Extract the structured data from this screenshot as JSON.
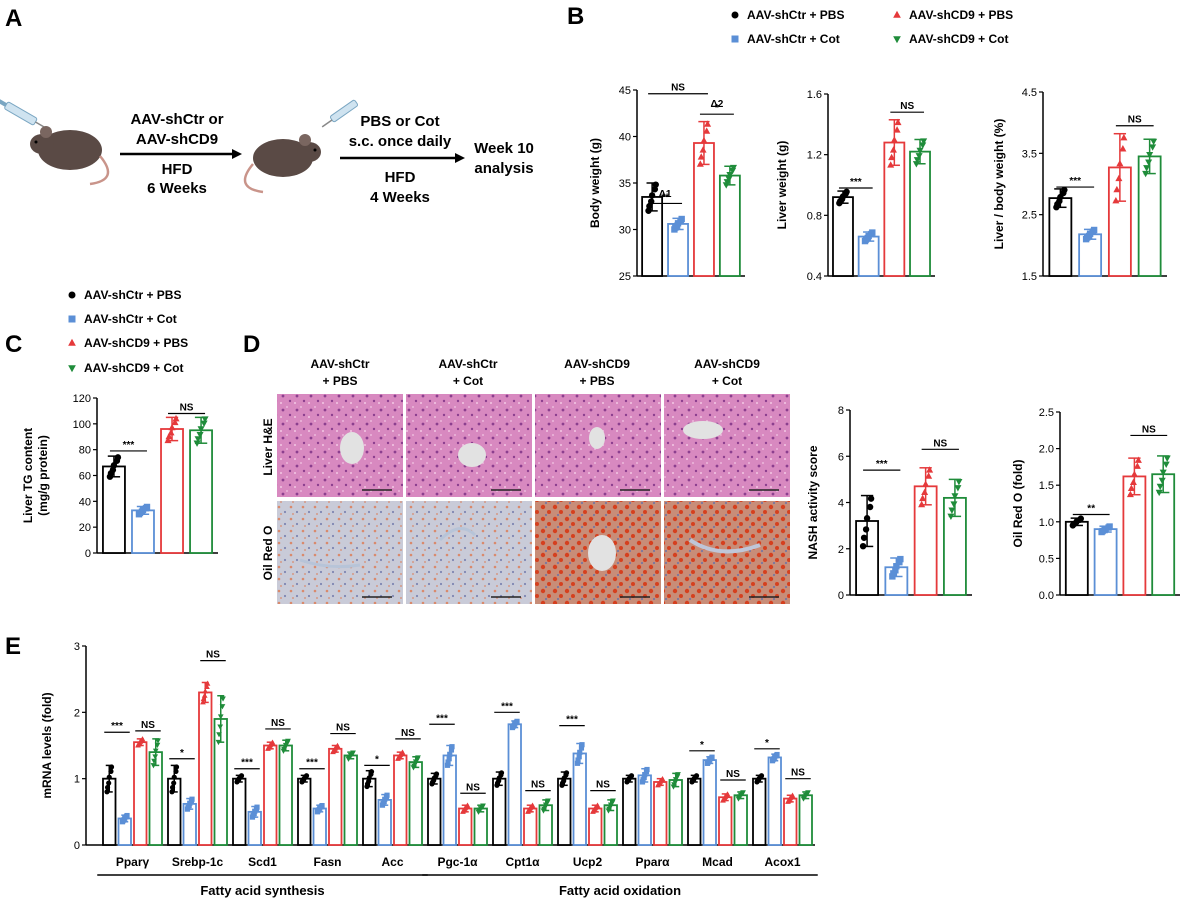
{
  "colors": {
    "AAV-shCtr + PBS": "#000000",
    "AAV-shCtr + Cot": "#5b8fd6",
    "AAV-shCD9 + PBS": "#e5393b",
    "AAV-shCD9 + Cot": "#1f8c3a"
  },
  "icons": [
    "syringe-icon",
    "mouse-icon",
    "arrow-right-icon"
  ],
  "panel_A": {
    "label": "A",
    "step1": [
      "AAV-shCtr or",
      "AAV-shCD9",
      "HFD",
      "6 Weeks"
    ],
    "step2": [
      "PBS or Cot",
      "s.c. once daily",
      "HFD",
      "4 Weeks"
    ],
    "result": [
      "Week 10",
      "analysis"
    ]
  },
  "panel_B_label": "B",
  "panel_C_label": "C",
  "panel_D": {
    "label": "D",
    "columns": [
      [
        "AAV-shCtr",
        "+ PBS"
      ],
      [
        "AAV-shCtr",
        "+ Cot"
      ],
      [
        "AAV-shCD9",
        "+ PBS"
      ],
      [
        "AAV-shCD9",
        "+ Cot"
      ]
    ],
    "rows": [
      "Liver H&E",
      "Oil Red O"
    ]
  },
  "panel_E_label": "E",
  "legend_B": [
    "AAV-shCtr + PBS",
    "AAV-shCtr + Cot",
    "AAV-shCD9 + PBS",
    "AAV-shCD9 + Cot"
  ],
  "legend_C": [
    "AAV-shCtr + PBS",
    "AAV-shCtr + Cot",
    "AAV-shCD9 + PBS",
    "AAV-shCD9 + Cot"
  ],
  "chart_data": [
    {
      "id": "B1",
      "type": "bar",
      "ylabel": "Body weight (g)",
      "ylim": [
        25,
        45
      ],
      "yticks": [
        25,
        30,
        35,
        40,
        45
      ],
      "groups": [
        "AAV-shCtr + PBS",
        "AAV-shCtr + Cot",
        "AAV-shCD9 + PBS",
        "AAV-shCD9 + Cot"
      ],
      "values": [
        33.5,
        30.6,
        39.3,
        35.8
      ],
      "errors": [
        1.5,
        0.6,
        2.3,
        1.0
      ],
      "annotations": [
        {
          "pair": [
            0,
            1
          ],
          "text": "**",
          "y": 32.8
        },
        {
          "pair": [
            0,
            1
          ],
          "text": "Δ1",
          "y": 33.7
        },
        {
          "pair": [
            2,
            3
          ],
          "text": "*",
          "y": 42.4
        },
        {
          "pair": [
            2,
            3
          ],
          "text": "Δ2",
          "y": 43.4
        },
        {
          "pair": [
            0,
            2
          ],
          "text": "NS",
          "y": 44.6
        }
      ]
    },
    {
      "id": "B2",
      "type": "bar",
      "ylabel": "Liver weight (g)",
      "ylim": [
        0.4,
        1.6
      ],
      "yticks": [
        0.4,
        0.8,
        1.2,
        1.6
      ],
      "groups": [
        "AAV-shCtr + PBS",
        "AAV-shCtr + Cot",
        "AAV-shCD9 + PBS",
        "AAV-shCD9 + Cot"
      ],
      "values": [
        0.92,
        0.66,
        1.28,
        1.22
      ],
      "errors": [
        0.04,
        0.03,
        0.15,
        0.08
      ],
      "annotations": [
        {
          "pair": [
            0,
            1
          ],
          "text": "***",
          "y": 0.98
        },
        {
          "pair": [
            2,
            3
          ],
          "text": "NS",
          "y": 1.48
        }
      ]
    },
    {
      "id": "B3",
      "type": "bar",
      "ylabel": "Liver / body weight (%)",
      "ylim": [
        1.5,
        4.5
      ],
      "yticks": [
        1.5,
        2.5,
        3.5,
        4.5
      ],
      "groups": [
        "AAV-shCtr + PBS",
        "AAV-shCtr + Cot",
        "AAV-shCD9 + PBS",
        "AAV-shCD9 + Cot"
      ],
      "values": [
        2.77,
        2.18,
        3.27,
        3.45
      ],
      "errors": [
        0.15,
        0.08,
        0.55,
        0.28
      ],
      "annotations": [
        {
          "pair": [
            0,
            1
          ],
          "text": "***",
          "y": 2.95
        },
        {
          "pair": [
            2,
            3
          ],
          "text": "NS",
          "y": 3.95
        }
      ]
    },
    {
      "id": "C",
      "type": "bar",
      "ylabel": [
        "Liver TG content",
        "(mg/g protein)"
      ],
      "ylim": [
        0,
        120
      ],
      "yticks": [
        0,
        20,
        40,
        60,
        80,
        100,
        120
      ],
      "groups": [
        "AAV-shCtr + PBS",
        "AAV-shCtr + Cot",
        "AAV-shCD9 + PBS",
        "AAV-shCD9 + Cot"
      ],
      "values": [
        67,
        33,
        96,
        95
      ],
      "errors": [
        8,
        3,
        9,
        10
      ],
      "annotations": [
        {
          "pair": [
            0,
            1
          ],
          "text": "***",
          "y": 79
        },
        {
          "pair": [
            2,
            3
          ],
          "text": "NS",
          "y": 108
        }
      ]
    },
    {
      "id": "D1",
      "type": "bar",
      "ylabel": "NASH activity score",
      "ylim": [
        0,
        8
      ],
      "yticks": [
        0,
        2,
        4,
        6,
        8
      ],
      "groups": [
        "AAV-shCtr + PBS",
        "AAV-shCtr + Cot",
        "AAV-shCD9 + PBS",
        "AAV-shCD9 + Cot"
      ],
      "values": [
        3.2,
        1.2,
        4.7,
        4.2
      ],
      "errors": [
        1.1,
        0.4,
        0.8,
        0.8
      ],
      "annotations": [
        {
          "pair": [
            0,
            1
          ],
          "text": "***",
          "y": 5.4
        },
        {
          "pair": [
            2,
            3
          ],
          "text": "NS",
          "y": 6.3
        }
      ]
    },
    {
      "id": "D2",
      "type": "bar",
      "ylabel": "Oil Red O (fold)",
      "ylim": [
        0,
        2.5
      ],
      "yticks": [
        0.0,
        0.5,
        1.0,
        1.5,
        2.0,
        2.5
      ],
      "groups": [
        "AAV-shCtr + PBS",
        "AAV-shCtr + Cot",
        "AAV-shCD9 + PBS",
        "AAV-shCD9 + Cot"
      ],
      "values": [
        1.0,
        0.9,
        1.62,
        1.65
      ],
      "errors": [
        0.05,
        0.04,
        0.25,
        0.25
      ],
      "annotations": [
        {
          "pair": [
            0,
            1
          ],
          "text": "**",
          "y": 1.1
        },
        {
          "pair": [
            2,
            3
          ],
          "text": "NS",
          "y": 2.18
        }
      ]
    },
    {
      "id": "E",
      "type": "bar",
      "ylabel": "mRNA levels (fold)",
      "ylim": [
        0,
        3
      ],
      "yticks": [
        0,
        1,
        2,
        3
      ],
      "categories": [
        "Pparγ",
        "Srebp-1c",
        "Scd1",
        "Fasn",
        "Acc",
        "Pgc-1α",
        "Cpt1α",
        "Ucp2",
        "Pparα",
        "Mcad",
        "Acox1"
      ],
      "groups_labels": [
        {
          "text": "Fatty acid synthesis",
          "from": 0,
          "to": 4
        },
        {
          "text": "Fatty acid oxidation",
          "from": 5,
          "to": 10
        }
      ],
      "series": [
        {
          "name": "AAV-shCtr + PBS",
          "values": [
            1.0,
            1.0,
            1.0,
            1.0,
            1.0,
            1.0,
            1.0,
            1.0,
            1.0,
            1.0,
            1.0
          ],
          "errors": [
            0.2,
            0.2,
            0.05,
            0.05,
            0.12,
            0.08,
            0.1,
            0.1,
            0.05,
            0.05,
            0.05
          ]
        },
        {
          "name": "AAV-shCtr + Cot",
          "values": [
            0.4,
            0.62,
            0.5,
            0.55,
            0.68,
            1.35,
            1.82,
            1.38,
            1.05,
            1.28,
            1.32
          ],
          "errors": [
            0.05,
            0.08,
            0.08,
            0.05,
            0.08,
            0.15,
            0.05,
            0.15,
            0.1,
            0.05,
            0.05
          ]
        },
        {
          "name": "AAV-shCD9 + PBS",
          "values": [
            1.55,
            2.3,
            1.5,
            1.45,
            1.35,
            0.55,
            0.55,
            0.55,
            0.95,
            0.72,
            0.7
          ],
          "errors": [
            0.05,
            0.15,
            0.05,
            0.05,
            0.05,
            0.05,
            0.05,
            0.05,
            0.05,
            0.05,
            0.05
          ]
        },
        {
          "name": "AAV-shCD9 + Cot",
          "values": [
            1.4,
            1.9,
            1.5,
            1.35,
            1.25,
            0.55,
            0.6,
            0.6,
            0.98,
            0.75,
            0.75
          ],
          "errors": [
            0.2,
            0.35,
            0.08,
            0.05,
            0.08,
            0.05,
            0.08,
            0.08,
            0.1,
            0.05,
            0.05
          ]
        }
      ],
      "annotations": [
        {
          "cat": 0,
          "pair": [
            0,
            1
          ],
          "text": "***",
          "y": 1.7
        },
        {
          "cat": 0,
          "pair": [
            2,
            3
          ],
          "text": "NS",
          "y": 1.72
        },
        {
          "cat": 1,
          "pair": [
            0,
            1
          ],
          "text": "*",
          "y": 1.3
        },
        {
          "cat": 1,
          "pair": [
            2,
            3
          ],
          "text": "NS",
          "y": 2.78
        },
        {
          "cat": 2,
          "pair": [
            0,
            1
          ],
          "text": "***",
          "y": 1.15
        },
        {
          "cat": 2,
          "pair": [
            2,
            3
          ],
          "text": "NS",
          "y": 1.75
        },
        {
          "cat": 3,
          "pair": [
            0,
            1
          ],
          "text": "***",
          "y": 1.15
        },
        {
          "cat": 3,
          "pair": [
            2,
            3
          ],
          "text": "NS",
          "y": 1.68
        },
        {
          "cat": 4,
          "pair": [
            0,
            1
          ],
          "text": "*",
          "y": 1.2
        },
        {
          "cat": 4,
          "pair": [
            2,
            3
          ],
          "text": "NS",
          "y": 1.6
        },
        {
          "cat": 5,
          "pair": [
            0,
            1
          ],
          "text": "***",
          "y": 1.82
        },
        {
          "cat": 5,
          "pair": [
            2,
            3
          ],
          "text": "NS",
          "y": 0.78
        },
        {
          "cat": 6,
          "pair": [
            0,
            1
          ],
          "text": "***",
          "y": 2.0
        },
        {
          "cat": 6,
          "pair": [
            2,
            3
          ],
          "text": "NS",
          "y": 0.82
        },
        {
          "cat": 7,
          "pair": [
            0,
            1
          ],
          "text": "***",
          "y": 1.8
        },
        {
          "cat": 7,
          "pair": [
            2,
            3
          ],
          "text": "NS",
          "y": 0.82
        },
        {
          "cat": 9,
          "pair": [
            0,
            1
          ],
          "text": "*",
          "y": 1.42
        },
        {
          "cat": 9,
          "pair": [
            2,
            3
          ],
          "text": "NS",
          "y": 0.98
        },
        {
          "cat": 10,
          "pair": [
            0,
            1
          ],
          "text": "*",
          "y": 1.45
        },
        {
          "cat": 10,
          "pair": [
            2,
            3
          ],
          "text": "NS",
          "y": 1.0
        }
      ]
    }
  ]
}
